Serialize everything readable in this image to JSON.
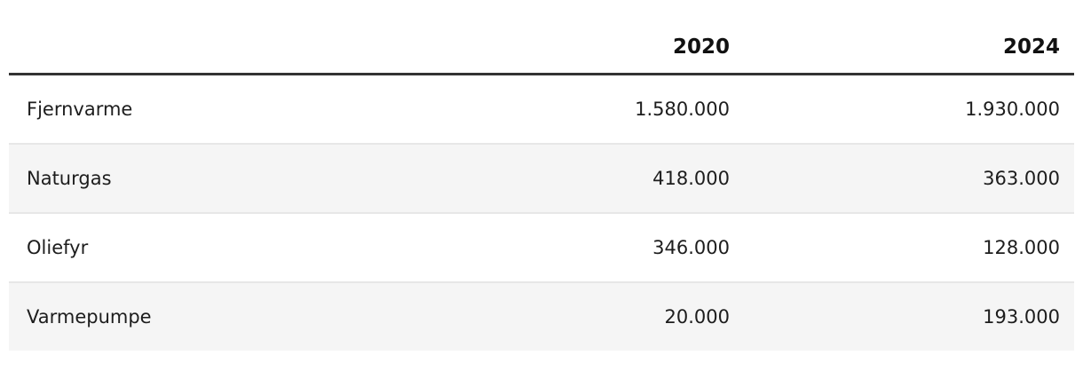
{
  "table": {
    "header": {
      "label": "",
      "col_2020": "2020",
      "col_2024": "2024"
    },
    "rows": [
      {
        "label": "Fjernvarme",
        "y2020": "1.580.000",
        "y2024": "1.930.000"
      },
      {
        "label": "Naturgas",
        "y2020": "418.000",
        "y2024": "363.000"
      },
      {
        "label": "Oliefyr",
        "y2020": "346.000",
        "y2024": "128.000"
      },
      {
        "label": "Varmepumpe",
        "y2020": "20.000",
        "y2024": "193.000"
      }
    ],
    "colors": {
      "header_rule": "#333333",
      "stripe_background": "#f5f5f5",
      "row_separator": "#e7e7e7",
      "text": "#1d1d1d"
    }
  },
  "chart_data": {
    "type": "table",
    "title": "",
    "categories": [
      "Fjernvarme",
      "Naturgas",
      "Oliefyr",
      "Varmepumpe"
    ],
    "series": [
      {
        "name": "2020",
        "values": [
          1580000,
          418000,
          346000,
          20000
        ]
      },
      {
        "name": "2024",
        "values": [
          1930000,
          363000,
          128000,
          193000
        ]
      }
    ],
    "number_format": "da-DK dot thousands separator"
  }
}
